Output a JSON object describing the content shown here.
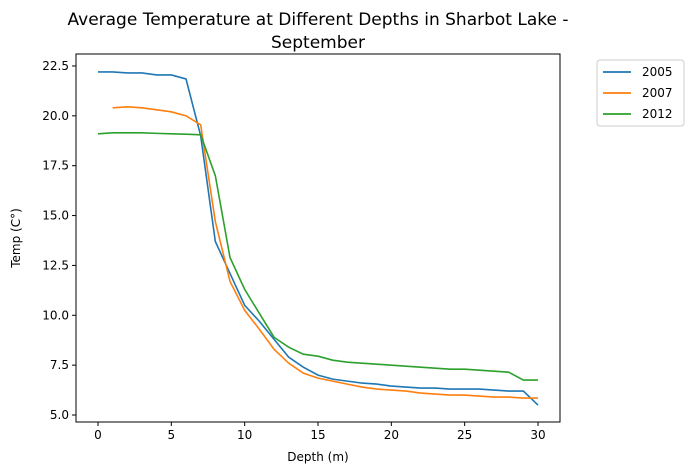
{
  "chart_data": {
    "type": "line",
    "title": "Average Temperature at Different Depths in Sharbot Lake -",
    "title_line2": "September",
    "xlabel": "Depth (m)",
    "ylabel": "Temp (C°)",
    "xlim": [
      -1.5,
      31.5
    ],
    "ylim": [
      4.65,
      23.1
    ],
    "xticks": [
      0,
      5,
      10,
      15,
      20,
      25,
      30
    ],
    "yticks": [
      5.0,
      7.5,
      10.0,
      12.5,
      15.0,
      17.5,
      20.0,
      22.5
    ],
    "grid": false,
    "legend_position": "outside-upper-right",
    "series": [
      {
        "name": "2005",
        "color": "#1f77b4",
        "x": [
          0,
          1,
          2,
          3,
          4,
          5,
          6,
          7,
          8,
          9,
          10,
          11,
          12,
          13,
          14,
          15,
          16,
          17,
          18,
          19,
          20,
          21,
          22,
          23,
          24,
          25,
          26,
          27,
          28,
          29,
          30
        ],
        "y": [
          22.2,
          22.2,
          22.15,
          22.15,
          22.05,
          22.05,
          21.85,
          19.0,
          13.7,
          12.1,
          10.5,
          9.7,
          8.8,
          7.9,
          7.4,
          7.0,
          6.8,
          6.7,
          6.6,
          6.55,
          6.45,
          6.4,
          6.35,
          6.35,
          6.3,
          6.3,
          6.3,
          6.25,
          6.2,
          6.2,
          5.5
        ]
      },
      {
        "name": "2007",
        "color": "#ff7f0e",
        "x": [
          1,
          2,
          3,
          4,
          5,
          6,
          7,
          8,
          9,
          10,
          11,
          12,
          13,
          14,
          15,
          16,
          17,
          18,
          19,
          20,
          21,
          22,
          23,
          24,
          25,
          26,
          27,
          28,
          29,
          30
        ],
        "y": [
          20.4,
          20.45,
          20.4,
          20.3,
          20.2,
          20.0,
          19.55,
          14.7,
          11.7,
          10.25,
          9.3,
          8.3,
          7.6,
          7.1,
          6.85,
          6.7,
          6.55,
          6.4,
          6.3,
          6.25,
          6.2,
          6.1,
          6.05,
          6.0,
          6.0,
          5.95,
          5.9,
          5.9,
          5.85,
          5.85
        ]
      },
      {
        "name": "2012",
        "color": "#2ca02c",
        "x": [
          0,
          1,
          2,
          3,
          4,
          5,
          6,
          7,
          8,
          9,
          10,
          11,
          12,
          13,
          14,
          15,
          16,
          17,
          18,
          19,
          20,
          21,
          22,
          23,
          24,
          25,
          26,
          27,
          28,
          29,
          30
        ],
        "y": [
          19.1,
          19.15,
          19.15,
          19.15,
          19.12,
          19.1,
          19.08,
          19.05,
          17.0,
          12.9,
          11.3,
          10.1,
          8.9,
          8.4,
          8.05,
          7.95,
          7.75,
          7.65,
          7.6,
          7.55,
          7.5,
          7.45,
          7.4,
          7.35,
          7.3,
          7.3,
          7.25,
          7.2,
          7.15,
          6.75,
          6.75
        ]
      }
    ]
  }
}
